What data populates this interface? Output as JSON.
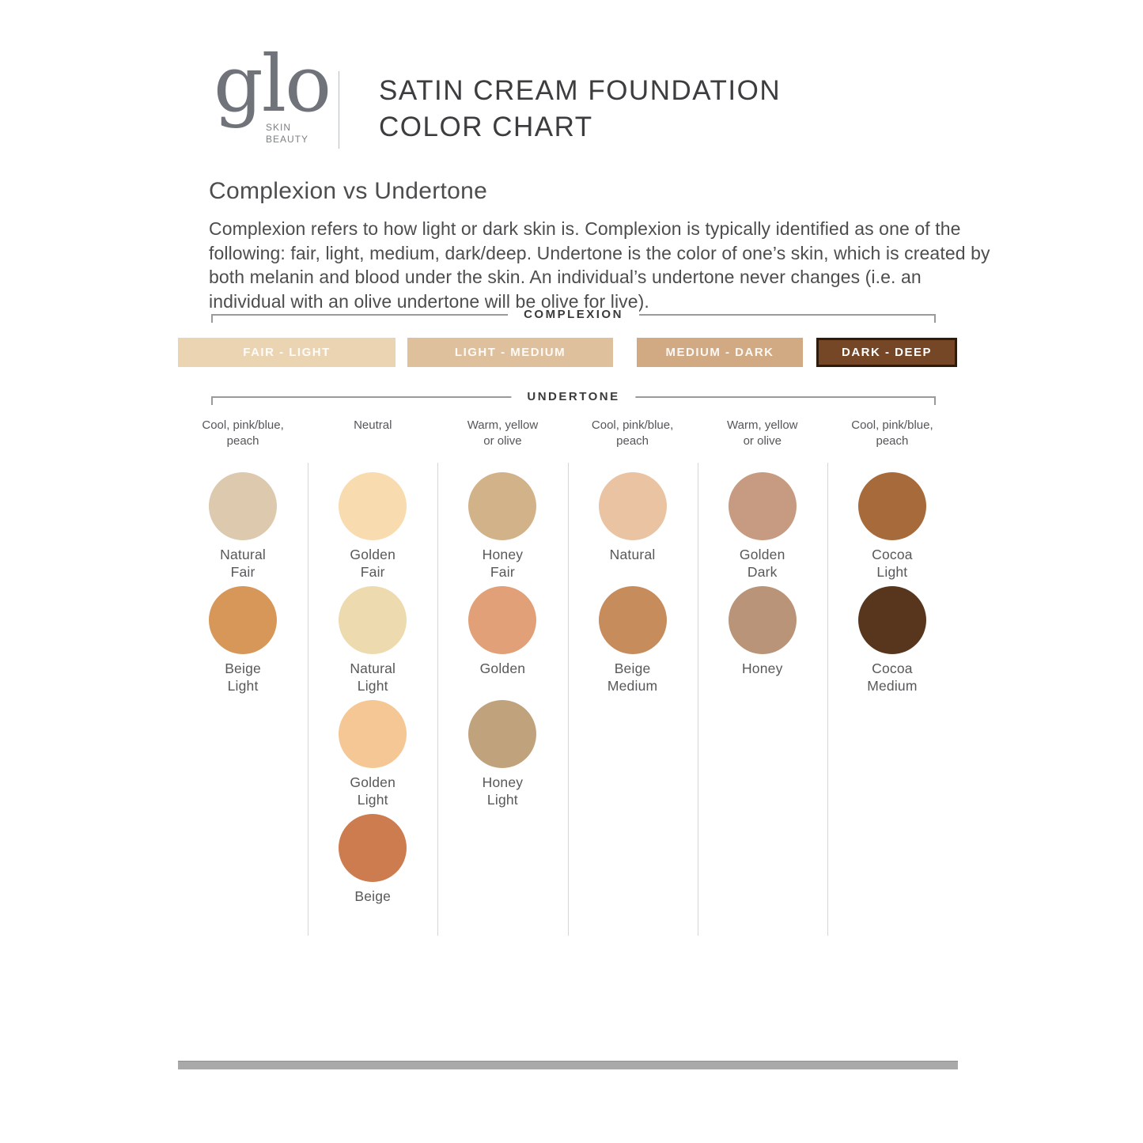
{
  "header": {
    "logo_text": "glo",
    "logo_sub": "SKIN\nBEAUTY",
    "title": "SATIN CREAM FOUNDATION\nCOLOR CHART"
  },
  "intro": {
    "heading": "Complexion vs Undertone",
    "body": "Complexion refers to how light or dark skin is. Complexion is typically identified as one of the following: fair, light, medium, dark/deep. Undertone is the color of one’s skin, which is created by both melanin and blood under the skin. An individual’s undertone never changes (i.e. an individual with an olive undertone will be olive for live)."
  },
  "complexion": {
    "label": "COMPLEXION",
    "bars": [
      {
        "label": "FAIR - LIGHT",
        "color": "#ebd4b2"
      },
      {
        "label": "LIGHT - MEDIUM",
        "color": "#dec09c"
      },
      {
        "label": "MEDIUM - DARK",
        "color": "#d1a982"
      },
      {
        "label": "DARK - DEEP",
        "color": "#754727",
        "border_color": "#2d1b0c"
      }
    ]
  },
  "undertone": {
    "label": "UNDERTONE",
    "columns": [
      "Cool, pink/blue,\npeach",
      "Neutral",
      "Warm, yellow\nor olive",
      "Cool, pink/blue,\npeach",
      "Warm, yellow\nor olive",
      "Cool, pink/blue,\npeach"
    ]
  },
  "swatches": {
    "r1c1": {
      "name": "Natural\nFair",
      "color": "#dcc9ae"
    },
    "r1c2": {
      "name": "Golden\nFair",
      "color": "#f8dcb0"
    },
    "r1c3": {
      "name": "Honey\nFair",
      "color": "#d2b389"
    },
    "r1c4": {
      "name": "Natural",
      "color": "#e9c3a2"
    },
    "r1c5": {
      "name": "Golden\nDark",
      "color": "#c79b82"
    },
    "r1c6": {
      "name": "Cocoa\nLight",
      "color": "#a76a3b"
    },
    "r2c1": {
      "name": "Beige\nLight",
      "color": "#d79759"
    },
    "r2c2": {
      "name": "Natural\nLight",
      "color": "#eddaae"
    },
    "r2c3": {
      "name": "Golden",
      "color": "#e1a077"
    },
    "r2c4": {
      "name": "Beige\nMedium",
      "color": "#c78c5c"
    },
    "r2c5": {
      "name": "Honey",
      "color": "#b99478"
    },
    "r2c6": {
      "name": "Cocoa\nMedium",
      "color": "#58361e"
    },
    "r3c2": {
      "name": "Golden\nLight",
      "color": "#f5c794"
    },
    "r3c3": {
      "name": "Honey\nLight",
      "color": "#c0a37d"
    },
    "r4c2": {
      "name": "Beige",
      "color": "#cc7c4e"
    }
  },
  "footer": {
    "bar_color": "#a9a9a9"
  }
}
